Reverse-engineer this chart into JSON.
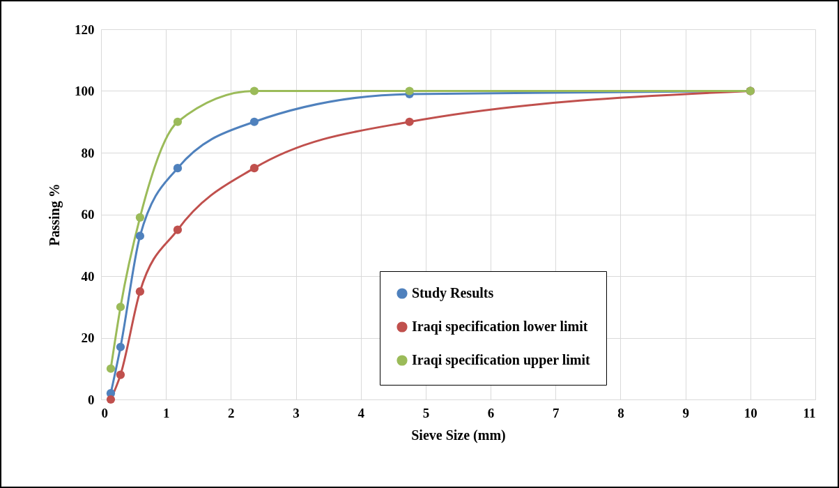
{
  "chart_data": {
    "type": "line",
    "xlabel": "Sieve Size (mm)",
    "ylabel": "Passing %",
    "x": [
      0.15,
      0.3,
      0.6,
      1.18,
      2.36,
      4.75,
      10
    ],
    "series": [
      {
        "name": "Study Results",
        "color": "#4f81bd",
        "values": [
          2,
          17,
          53,
          75,
          90,
          99,
          100
        ]
      },
      {
        "name": "Iraqi specification lower limit",
        "color": "#c0504d",
        "values": [
          0,
          8,
          35,
          55,
          75,
          90,
          100
        ]
      },
      {
        "name": "Iraqi specification upper limit",
        "color": "#9bbb59",
        "values": [
          10,
          30,
          59,
          90,
          100,
          100,
          100
        ]
      }
    ],
    "xlim": [
      0,
      11
    ],
    "xticks": [
      0,
      1,
      2,
      3,
      4,
      5,
      6,
      7,
      8,
      9,
      10,
      11
    ],
    "ylim": [
      0,
      120
    ],
    "yticks": [
      0,
      20,
      40,
      60,
      80,
      100,
      120
    ],
    "grid": true,
    "legend": "bottom right",
    "marker": "circle",
    "line_style": "solid"
  }
}
